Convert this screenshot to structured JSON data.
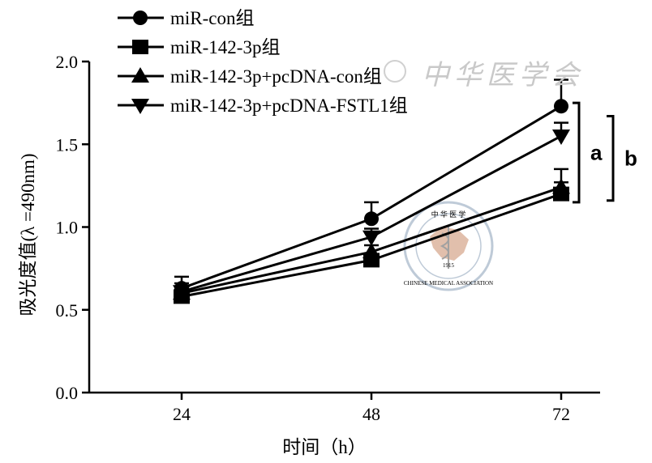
{
  "chart_data": {
    "type": "line",
    "x": [
      24,
      48,
      72
    ],
    "xlabel": "时间（h）",
    "ylabel": "吸光度值(λ =490nm)",
    "ylim": [
      0.0,
      2.0
    ],
    "yticks": [
      "0.0",
      "0.5",
      "1.0",
      "1.5",
      "2.0"
    ],
    "xticks": [
      "24",
      "48",
      "72"
    ],
    "legend_position": "top-left",
    "grid": false,
    "series": [
      {
        "name": "miR-con组",
        "marker": "circle",
        "values": [
          0.63,
          1.05,
          1.73
        ],
        "errors": [
          0.07,
          0.1,
          0.16
        ]
      },
      {
        "name": "miR-142-3p组",
        "marker": "square",
        "values": [
          0.58,
          0.8,
          1.2
        ],
        "errors": [
          0.04,
          0.03,
          0.07
        ]
      },
      {
        "name": "miR-142-3p+pcDNA-con组",
        "marker": "triangle-up",
        "values": [
          0.6,
          0.85,
          1.24
        ],
        "errors": [
          0.04,
          0.04,
          0.11
        ]
      },
      {
        "name": "miR-142-3p+pcDNA-FSTL1组",
        "marker": "triangle-down",
        "values": [
          0.61,
          0.94,
          1.55
        ],
        "errors": [
          0.05,
          0.05,
          0.08
        ]
      }
    ],
    "annotations": [
      {
        "label": "a",
        "between": [
          0,
          1
        ],
        "at": 72
      },
      {
        "label": "b",
        "between": [
          3,
          2
        ],
        "at": 72
      }
    ]
  },
  "watermark": {
    "logo_top": "中 华 医 学",
    "logo_year": "1915",
    "logo_ring": "CHINESE MEDICAL ASSOCIATION",
    "banner": "中华医学会"
  }
}
